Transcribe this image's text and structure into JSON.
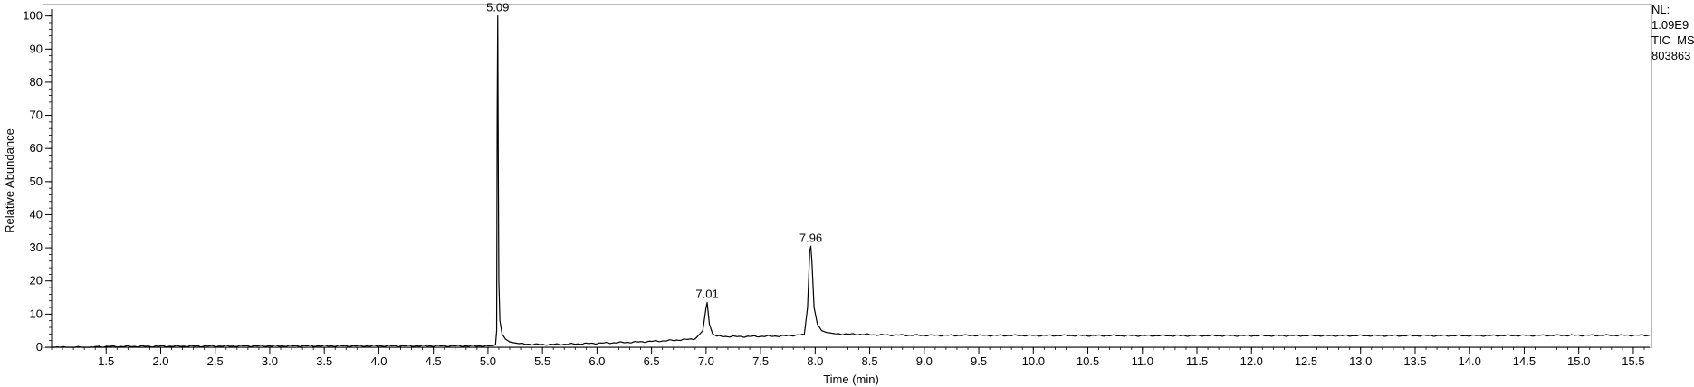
{
  "info": {
    "nl_label": "NL:",
    "nl_value": "1.09E9",
    "trace_label": "TIC  MS",
    "file_id": "803863"
  },
  "chart_data": {
    "type": "line",
    "title": "",
    "xlabel": "Time (min)",
    "ylabel": "Relative Abundance",
    "xlim": [
      1.0,
      15.65
    ],
    "ylim": [
      0,
      101
    ],
    "x_ticks": [
      1.5,
      2.0,
      2.5,
      3.0,
      3.5,
      4.0,
      4.5,
      5.0,
      5.5,
      6.0,
      6.5,
      7.0,
      7.5,
      8.0,
      8.5,
      9.0,
      9.5,
      10.0,
      10.5,
      11.0,
      11.5,
      12.0,
      12.5,
      13.0,
      13.5,
      14.0,
      14.5,
      15.0,
      15.5
    ],
    "x_tick_labels": [
      "1.5",
      "2.0",
      "2.5",
      "3.0",
      "3.5",
      "4.0",
      "4.5",
      "5.0",
      "5.5",
      "6.0",
      "6.5",
      "7.0",
      "7.5",
      "8.0",
      "8.5",
      "9.0",
      "9.5",
      "10.0",
      "10.5",
      "11.0",
      "11.5",
      "12.0",
      "12.5",
      "13.0",
      "13.5",
      "14.0",
      "14.5",
      "15.0",
      "15.5"
    ],
    "y_ticks": [
      0,
      10,
      20,
      30,
      40,
      50,
      60,
      70,
      80,
      90,
      100
    ],
    "y_tick_labels": [
      "0",
      "10",
      "20",
      "30",
      "40",
      "50",
      "60",
      "70",
      "80",
      "90",
      "100"
    ],
    "grid": false,
    "legend": "none",
    "line_color": "#000000",
    "series": [
      {
        "x": [
          1.0,
          1.38,
          1.4,
          2.0,
          3.0,
          4.0,
          4.5,
          5.0,
          5.05,
          5.07,
          5.08,
          5.085,
          5.09,
          5.095,
          5.1,
          5.11,
          5.13,
          5.16,
          5.2,
          5.3,
          5.5,
          5.7,
          6.0,
          6.3,
          6.6,
          6.9,
          6.97,
          7.0,
          7.01,
          7.03,
          7.06,
          7.1,
          7.3,
          7.5,
          7.7,
          7.9,
          7.93,
          7.95,
          7.96,
          7.97,
          7.99,
          8.02,
          8.06,
          8.1,
          8.2,
          8.4,
          8.6,
          9.0,
          10.0,
          11.0,
          12.0,
          13.0,
          14.0,
          15.0,
          15.65
        ],
        "y": [
          0,
          0,
          0.2,
          0.3,
          0.4,
          0.4,
          0.4,
          0.4,
          0.5,
          0.8,
          5,
          70,
          100,
          55,
          20,
          8,
          4,
          2.5,
          1.6,
          1.0,
          0.8,
          0.9,
          1.2,
          1.5,
          1.9,
          2.5,
          5,
          12,
          13.5,
          7,
          4,
          3.3,
          3.2,
          3.3,
          3.4,
          3.8,
          12,
          29,
          30.5,
          26,
          12,
          7,
          5,
          4.5,
          4.0,
          3.9,
          3.7,
          3.6,
          3.55,
          3.5,
          3.5,
          3.5,
          3.5,
          3.6,
          3.6
        ]
      }
    ],
    "peak_labels": [
      {
        "x": 5.09,
        "y": 100,
        "text": "5.09"
      },
      {
        "x": 7.01,
        "y": 13.5,
        "text": "7.01"
      },
      {
        "x": 7.96,
        "y": 30.5,
        "text": "7.96"
      }
    ]
  }
}
